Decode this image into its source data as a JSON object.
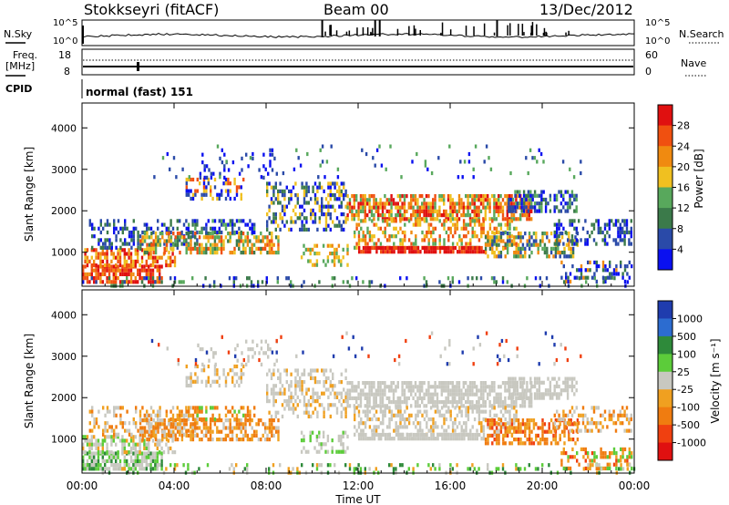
{
  "header": {
    "station": "Stokkseyri (fitACF)",
    "beam": "Beam 00",
    "date": "13/Dec/2012"
  },
  "sky_panel": {
    "left_label": "N.Sky",
    "right_label": "N.Search",
    "left_ticks": [
      "10^5",
      "10^0"
    ],
    "right_ticks": [
      "10^5",
      "10^0"
    ]
  },
  "freq_panel": {
    "left_label_top": "Freq.",
    "left_label_unit": "[MHz]",
    "left_ticks": [
      "18",
      "8"
    ],
    "right_ticks": [
      "60",
      "0"
    ],
    "right_label": "Nave"
  },
  "cpid": {
    "label": "CPID",
    "value": "normal (fast) 151"
  },
  "colors": {
    "power_scale": [
      "#0a10f0",
      "#2a4aa8",
      "#3b7a4a",
      "#58a85c",
      "#f0c020",
      "#f08a10",
      "#f05010",
      "#e01010"
    ],
    "velocity_scale": [
      "#1f3cae",
      "#2c6cd0",
      "#2e8a3a",
      "#5ccc3a",
      "#c8c8c0",
      "#f0a020",
      "#f07c10",
      "#f04010",
      "#e01010"
    ]
  },
  "chart_data": [
    {
      "type": "heatmap",
      "title": "Power",
      "ylabel": "Slant Range [km]",
      "xlabel": "Time UT",
      "x_ticks": [
        "00:00",
        "04:00",
        "08:00",
        "12:00",
        "16:00",
        "20:00",
        "00:00"
      ],
      "y_ticks": [
        "1000",
        "2000",
        "3000",
        "4000"
      ],
      "ylim": [
        180,
        4600
      ],
      "colorbar": {
        "label": "Power [dB]",
        "ticks": [
          "4",
          "8",
          "12",
          "16",
          "20",
          "24",
          "28"
        ],
        "range": [
          0,
          32
        ]
      }
    },
    {
      "type": "heatmap",
      "title": "Velocity",
      "ylabel": "Slant Range [km]",
      "xlabel": "Time UT",
      "x_ticks": [
        "00:00",
        "04:00",
        "08:00",
        "12:00",
        "16:00",
        "20:00",
        "00:00"
      ],
      "y_ticks": [
        "1000",
        "2000",
        "3000",
        "4000"
      ],
      "ylim": [
        180,
        4600
      ],
      "colorbar": {
        "label": "Velocity [m s⁻¹]",
        "ticks": [
          "1000",
          "500",
          "100",
          "25",
          "-25",
          "-100",
          "-500",
          "-1000"
        ]
      }
    }
  ]
}
